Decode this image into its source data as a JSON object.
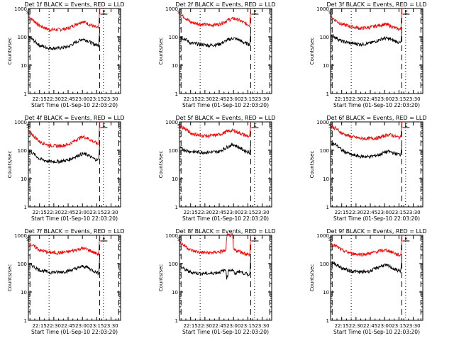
{
  "chart_data": {
    "type": "line",
    "grid": "3x3",
    "ylabel": "Counts/sec",
    "xlabel": "Start Time (01-Sep-10 22:03:20)",
    "x_tick_labels": [
      "22:15",
      "22:30",
      "22:45",
      "23:00",
      "23:15",
      "23:30"
    ],
    "x_tick_minutes": [
      15,
      30,
      45,
      60,
      75,
      90
    ],
    "xlim_minutes": [
      3.33,
      100
    ],
    "y_scale": "log",
    "ylim": [
      1,
      1000
    ],
    "y_tick_labels": [
      "1",
      "10",
      "100",
      "1000"
    ],
    "y_tick_values": [
      1,
      10,
      100,
      1000
    ],
    "marker_labels": [
      "S",
      "E"
    ],
    "vlines_dashed_minutes": [
      5,
      78,
      98
    ],
    "vlines_dotted_minutes": [
      25,
      82
    ],
    "series_colors": {
      "events": "#000000",
      "lld": "#ff0000"
    },
    "panels": [
      {
        "title": "Det 1f BLACK = Events, RED = LLD",
        "events": [
          [
            4,
            100
          ],
          [
            10,
            70
          ],
          [
            15,
            50
          ],
          [
            25,
            40
          ],
          [
            35,
            40
          ],
          [
            45,
            45
          ],
          [
            55,
            70
          ],
          [
            60,
            85
          ],
          [
            65,
            75
          ],
          [
            72,
            55
          ],
          [
            77,
            50
          ],
          [
            78,
            150
          ]
        ],
        "lld": [
          [
            4,
            500
          ],
          [
            10,
            350
          ],
          [
            15,
            250
          ],
          [
            25,
            180
          ],
          [
            35,
            180
          ],
          [
            45,
            200
          ],
          [
            55,
            300
          ],
          [
            60,
            350
          ],
          [
            65,
            300
          ],
          [
            72,
            230
          ],
          [
            77,
            200
          ],
          [
            78,
            1000
          ]
        ]
      },
      {
        "title": "Det 2f BLACK = Events, RED = LLD",
        "events": [
          [
            4,
            100
          ],
          [
            10,
            80
          ],
          [
            15,
            60
          ],
          [
            25,
            55
          ],
          [
            35,
            50
          ],
          [
            45,
            55
          ],
          [
            55,
            80
          ],
          [
            60,
            90
          ],
          [
            65,
            80
          ],
          [
            72,
            60
          ],
          [
            77,
            55
          ],
          [
            78,
            150
          ]
        ],
        "lld": [
          [
            4,
            650
          ],
          [
            10,
            450
          ],
          [
            15,
            330
          ],
          [
            25,
            280
          ],
          [
            35,
            260
          ],
          [
            45,
            280
          ],
          [
            55,
            400
          ],
          [
            60,
            450
          ],
          [
            65,
            400
          ],
          [
            72,
            300
          ],
          [
            77,
            250
          ],
          [
            78,
            1000
          ]
        ]
      },
      {
        "title": "Det 3f BLACK = Events, RED = LLD",
        "events": [
          [
            4,
            120
          ],
          [
            10,
            90
          ],
          [
            15,
            70
          ],
          [
            25,
            60
          ],
          [
            35,
            55
          ],
          [
            45,
            60
          ],
          [
            55,
            80
          ],
          [
            60,
            90
          ],
          [
            65,
            85
          ],
          [
            72,
            70
          ],
          [
            77,
            60
          ],
          [
            78,
            150
          ]
        ],
        "lld": [
          [
            4,
            500
          ],
          [
            10,
            350
          ],
          [
            15,
            280
          ],
          [
            25,
            230
          ],
          [
            35,
            200
          ],
          [
            45,
            220
          ],
          [
            55,
            260
          ],
          [
            60,
            280
          ],
          [
            65,
            250
          ],
          [
            72,
            200
          ],
          [
            77,
            180
          ],
          [
            78,
            1000
          ]
        ]
      },
      {
        "title": "Det 4f BLACK = Events, RED = LLD",
        "events": [
          [
            4,
            100
          ],
          [
            10,
            70
          ],
          [
            15,
            50
          ],
          [
            25,
            40
          ],
          [
            35,
            40
          ],
          [
            45,
            45
          ],
          [
            55,
            65
          ],
          [
            60,
            75
          ],
          [
            65,
            70
          ],
          [
            72,
            50
          ],
          [
            77,
            45
          ],
          [
            78,
            150
          ]
        ],
        "lld": [
          [
            4,
            450
          ],
          [
            10,
            300
          ],
          [
            15,
            200
          ],
          [
            25,
            150
          ],
          [
            35,
            140
          ],
          [
            45,
            160
          ],
          [
            55,
            250
          ],
          [
            60,
            300
          ],
          [
            65,
            270
          ],
          [
            72,
            200
          ],
          [
            77,
            160
          ],
          [
            78,
            1000
          ]
        ]
      },
      {
        "title": "Det 5f BLACK = Events, RED = LLD",
        "events": [
          [
            4,
            120
          ],
          [
            10,
            100
          ],
          [
            15,
            90
          ],
          [
            25,
            85
          ],
          [
            35,
            85
          ],
          [
            45,
            90
          ],
          [
            55,
            140
          ],
          [
            60,
            160
          ],
          [
            65,
            130
          ],
          [
            72,
            95
          ],
          [
            77,
            85
          ],
          [
            78,
            150
          ]
        ],
        "lld": [
          [
            4,
            700
          ],
          [
            10,
            550
          ],
          [
            15,
            400
          ],
          [
            25,
            330
          ],
          [
            35,
            320
          ],
          [
            45,
            360
          ],
          [
            55,
            480
          ],
          [
            60,
            500
          ],
          [
            65,
            420
          ],
          [
            72,
            340
          ],
          [
            77,
            300
          ],
          [
            78,
            1000
          ]
        ]
      },
      {
        "title": "Det 6f BLACK = Events, RED = LLD",
        "events": [
          [
            4,
            180
          ],
          [
            10,
            150
          ],
          [
            15,
            100
          ],
          [
            25,
            70
          ],
          [
            35,
            60
          ],
          [
            45,
            60
          ],
          [
            55,
            70
          ],
          [
            60,
            85
          ],
          [
            65,
            90
          ],
          [
            72,
            75
          ],
          [
            77,
            70
          ],
          [
            78,
            150
          ]
        ],
        "lld": [
          [
            4,
            700
          ],
          [
            10,
            550
          ],
          [
            15,
            400
          ],
          [
            25,
            300
          ],
          [
            35,
            260
          ],
          [
            45,
            260
          ],
          [
            55,
            280
          ],
          [
            60,
            330
          ],
          [
            65,
            360
          ],
          [
            72,
            300
          ],
          [
            77,
            280
          ],
          [
            78,
            1000
          ]
        ]
      },
      {
        "title": "Det 7f BLACK = Events, RED = LLD",
        "events": [
          [
            4,
            100
          ],
          [
            10,
            75
          ],
          [
            15,
            60
          ],
          [
            25,
            50
          ],
          [
            35,
            50
          ],
          [
            45,
            55
          ],
          [
            55,
            70
          ],
          [
            60,
            80
          ],
          [
            65,
            75
          ],
          [
            72,
            55
          ],
          [
            77,
            45
          ],
          [
            78,
            150
          ]
        ],
        "lld": [
          [
            4,
            500
          ],
          [
            10,
            400
          ],
          [
            15,
            300
          ],
          [
            25,
            250
          ],
          [
            35,
            240
          ],
          [
            45,
            260
          ],
          [
            55,
            320
          ],
          [
            60,
            350
          ],
          [
            65,
            320
          ],
          [
            72,
            250
          ],
          [
            77,
            210
          ],
          [
            78,
            1000
          ]
        ]
      },
      {
        "title": "Det 8f BLACK = Events, RED = LLD",
        "events": [
          [
            4,
            80
          ],
          [
            10,
            60
          ],
          [
            15,
            50
          ],
          [
            25,
            45
          ],
          [
            35,
            45
          ],
          [
            45,
            50
          ],
          [
            52,
            60
          ],
          [
            53,
            30
          ],
          [
            55,
            60
          ],
          [
            60,
            60
          ],
          [
            61,
            40
          ],
          [
            65,
            55
          ],
          [
            72,
            45
          ],
          [
            77,
            40
          ],
          [
            78,
            150
          ]
        ],
        "lld": [
          [
            4,
            550
          ],
          [
            10,
            400
          ],
          [
            15,
            300
          ],
          [
            25,
            250
          ],
          [
            35,
            240
          ],
          [
            45,
            260
          ],
          [
            52,
            290
          ],
          [
            53,
            1000
          ],
          [
            59,
            1000
          ],
          [
            60,
            300
          ],
          [
            65,
            280
          ],
          [
            72,
            230
          ],
          [
            77,
            200
          ],
          [
            78,
            1000
          ]
        ]
      },
      {
        "title": "Det 9f BLACK = Events, RED = LLD",
        "events": [
          [
            4,
            120
          ],
          [
            10,
            90
          ],
          [
            15,
            70
          ],
          [
            25,
            55
          ],
          [
            35,
            50
          ],
          [
            45,
            55
          ],
          [
            55,
            80
          ],
          [
            60,
            90
          ],
          [
            65,
            80
          ],
          [
            72,
            60
          ],
          [
            77,
            55
          ],
          [
            78,
            150
          ]
        ],
        "lld": [
          [
            4,
            500
          ],
          [
            10,
            400
          ],
          [
            15,
            300
          ],
          [
            25,
            230
          ],
          [
            35,
            210
          ],
          [
            45,
            230
          ],
          [
            55,
            280
          ],
          [
            60,
            300
          ],
          [
            65,
            280
          ],
          [
            72,
            220
          ],
          [
            77,
            190
          ],
          [
            78,
            1000
          ]
        ]
      }
    ]
  }
}
